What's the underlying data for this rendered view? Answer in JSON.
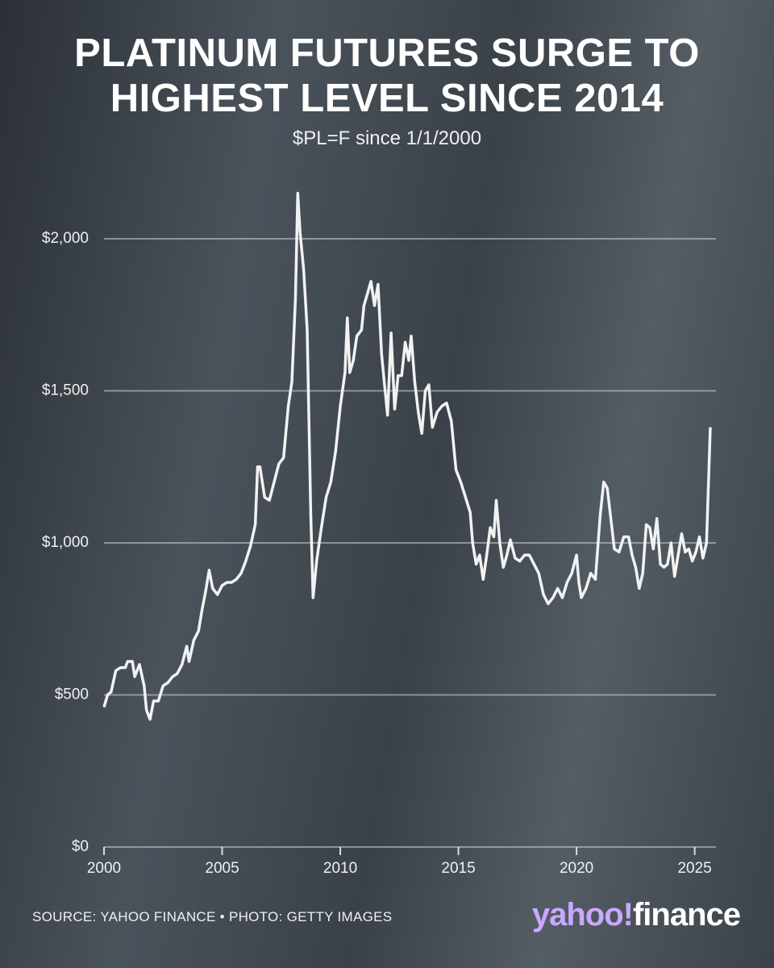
{
  "chart_data": {
    "type": "line",
    "title": "PLATINUM FUTURES SURGE TO HIGHEST LEVEL SINCE 2014",
    "subtitle": "$PL=F since 1/1/2000",
    "source": "SOURCE: YAHOO FINANCE • PHOTO: GETTY IMAGES",
    "logo": [
      "yahoo!",
      "finance"
    ],
    "color": "#f2f2f2",
    "grid": true,
    "xlim": [
      2000,
      2025.9
    ],
    "xticks": [
      2000,
      2005,
      2010,
      2015,
      2020,
      2025
    ],
    "ylim": [
      0,
      2000
    ],
    "yticks": [
      {
        "value": 0,
        "label": "$0"
      },
      {
        "value": 500,
        "label": "$500"
      },
      {
        "value": 1000,
        "label": "$1,000"
      },
      {
        "value": 1500,
        "label": "$1,500"
      },
      {
        "value": 2000,
        "label": "$2,000"
      }
    ],
    "x": [
      2000.0,
      2000.15,
      2000.3,
      2000.5,
      2000.7,
      2000.9,
      2001.0,
      2001.2,
      2001.3,
      2001.5,
      2001.7,
      2001.8,
      2001.95,
      2002.1,
      2002.3,
      2002.5,
      2002.7,
      2002.9,
      2003.1,
      2003.3,
      2003.5,
      2003.6,
      2003.8,
      2004.0,
      2004.15,
      2004.3,
      2004.45,
      2004.6,
      2004.8,
      2005.0,
      2005.2,
      2005.4,
      2005.6,
      2005.8,
      2006.0,
      2006.2,
      2006.4,
      2006.5,
      2006.6,
      2006.8,
      2007.0,
      2007.2,
      2007.4,
      2007.6,
      2007.8,
      2007.95,
      2008.1,
      2008.2,
      2008.3,
      2008.45,
      2008.6,
      2008.75,
      2008.85,
      2009.0,
      2009.2,
      2009.4,
      2009.6,
      2009.8,
      2010.0,
      2010.2,
      2010.3,
      2010.4,
      2010.55,
      2010.7,
      2010.9,
      2011.0,
      2011.15,
      2011.3,
      2011.45,
      2011.6,
      2011.75,
      2011.9,
      2012.0,
      2012.15,
      2012.3,
      2012.45,
      2012.6,
      2012.75,
      2012.9,
      2013.0,
      2013.15,
      2013.3,
      2013.45,
      2013.6,
      2013.75,
      2013.9,
      2014.1,
      2014.3,
      2014.5,
      2014.7,
      2014.9,
      2015.1,
      2015.3,
      2015.5,
      2015.6,
      2015.75,
      2015.9,
      2016.05,
      2016.2,
      2016.35,
      2016.5,
      2016.6,
      2016.75,
      2016.9,
      2017.05,
      2017.2,
      2017.4,
      2017.6,
      2017.8,
      2018.0,
      2018.2,
      2018.4,
      2018.6,
      2018.8,
      2019.0,
      2019.2,
      2019.4,
      2019.6,
      2019.8,
      2020.0,
      2020.1,
      2020.2,
      2020.4,
      2020.6,
      2020.8,
      2021.0,
      2021.15,
      2021.3,
      2021.45,
      2021.6,
      2021.8,
      2022.0,
      2022.2,
      2022.35,
      2022.5,
      2022.65,
      2022.8,
      2022.95,
      2023.1,
      2023.25,
      2023.4,
      2023.55,
      2023.7,
      2023.85,
      2024.0,
      2024.15,
      2024.3,
      2024.45,
      2024.6,
      2024.75,
      2024.9,
      2025.05,
      2025.2,
      2025.35,
      2025.5,
      2025.66
    ],
    "values": [
      460,
      500,
      510,
      580,
      590,
      590,
      610,
      610,
      560,
      600,
      530,
      450,
      420,
      480,
      480,
      530,
      540,
      560,
      570,
      600,
      660,
      610,
      680,
      710,
      780,
      840,
      910,
      850,
      830,
      860,
      870,
      870,
      880,
      900,
      940,
      990,
      1060,
      1250,
      1250,
      1150,
      1140,
      1200,
      1260,
      1280,
      1450,
      1530,
      1800,
      2150,
      2020,
      1900,
      1700,
      1100,
      820,
      940,
      1050,
      1150,
      1200,
      1300,
      1450,
      1560,
      1740,
      1560,
      1600,
      1680,
      1700,
      1780,
      1820,
      1860,
      1780,
      1850,
      1620,
      1500,
      1420,
      1690,
      1440,
      1550,
      1550,
      1660,
      1600,
      1680,
      1530,
      1430,
      1360,
      1500,
      1520,
      1380,
      1430,
      1450,
      1460,
      1400,
      1240,
      1200,
      1150,
      1100,
      1000,
      930,
      960,
      880,
      960,
      1050,
      1020,
      1140,
      1000,
      920,
      960,
      1010,
      950,
      940,
      960,
      960,
      930,
      900,
      830,
      800,
      820,
      850,
      820,
      870,
      900,
      960,
      870,
      820,
      850,
      900,
      880,
      1090,
      1200,
      1180,
      1080,
      980,
      970,
      1020,
      1020,
      960,
      920,
      850,
      900,
      1060,
      1050,
      980,
      1080,
      930,
      920,
      930,
      1000,
      890,
      960,
      1030,
      970,
      980,
      940,
      970,
      1020,
      950,
      1000,
      1380
    ]
  }
}
